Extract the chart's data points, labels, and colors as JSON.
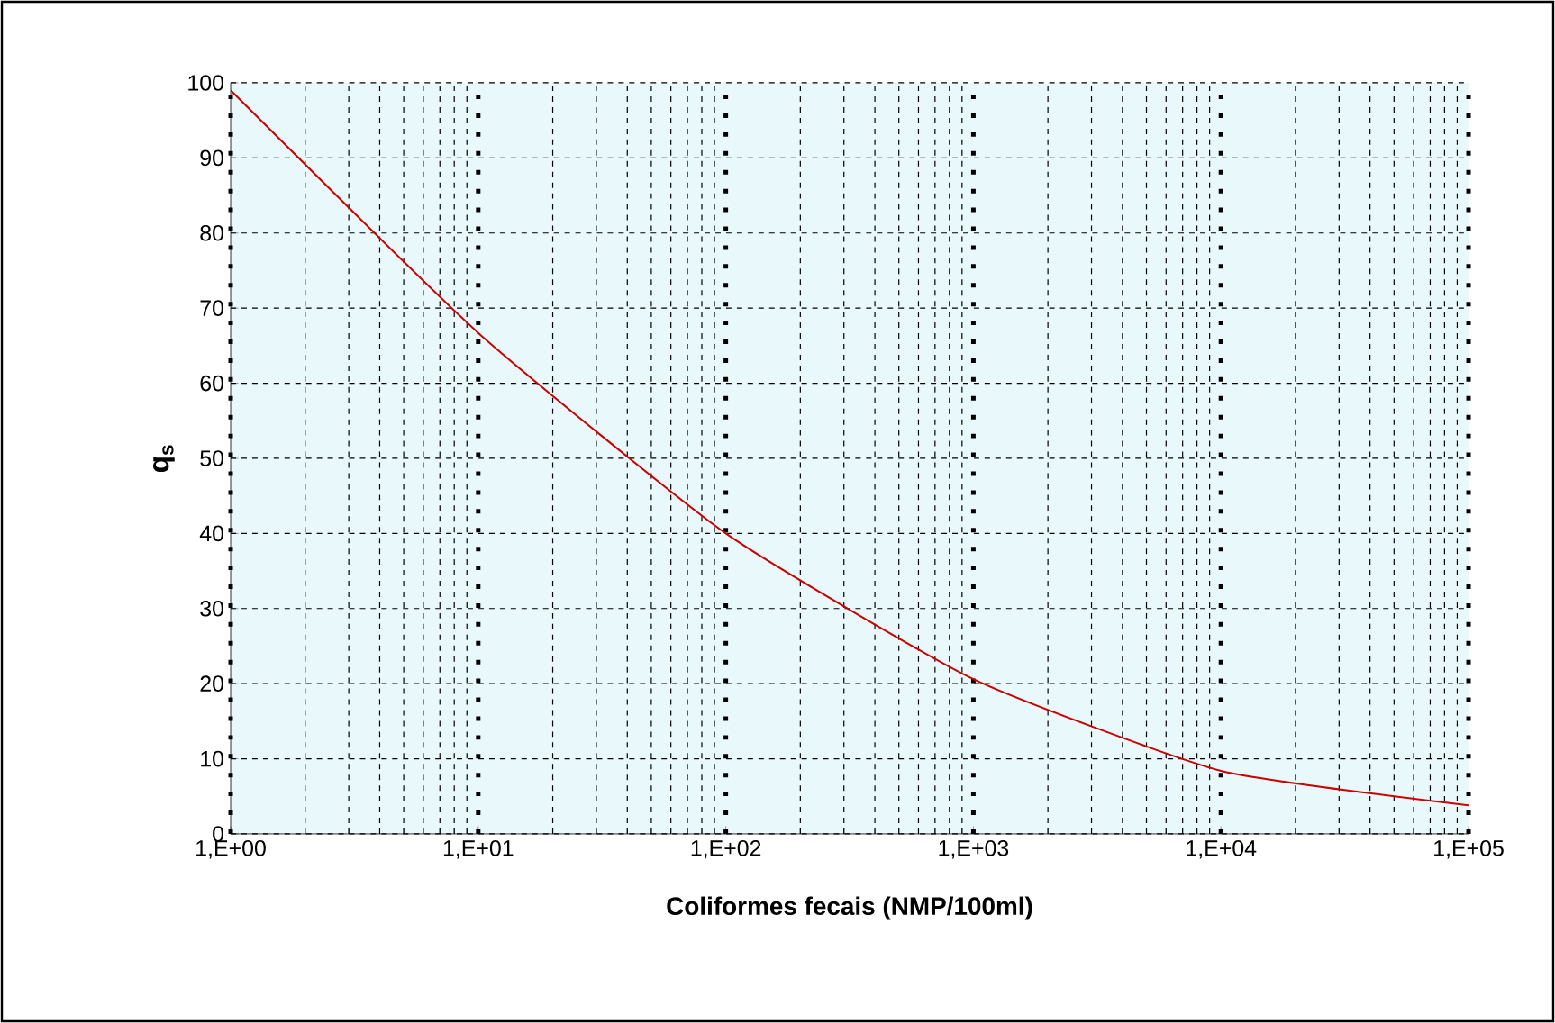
{
  "chart_data": {
    "type": "line",
    "xlabel": "Coliformes fecais (NMP/100ml)",
    "ylabel": "q$_{s}$",
    "grid": true,
    "marker": "none",
    "line_style": "solid",
    "categories": [
      "1,E+00",
      "1,E+01",
      "1,E+02",
      "1,E+03",
      "1,E+04",
      "1,E+05"
    ],
    "ylim": [
      0,
      100
    ],
    "yticks": [
      0,
      10,
      20,
      30,
      40,
      50,
      60,
      70,
      80,
      90,
      100
    ],
    "series": [
      {
        "color": "#cc0000",
        "values": [
          99,
          66.7,
          40,
          20.6,
          8.4,
          3.8
        ]
      }
    ]
  }
}
